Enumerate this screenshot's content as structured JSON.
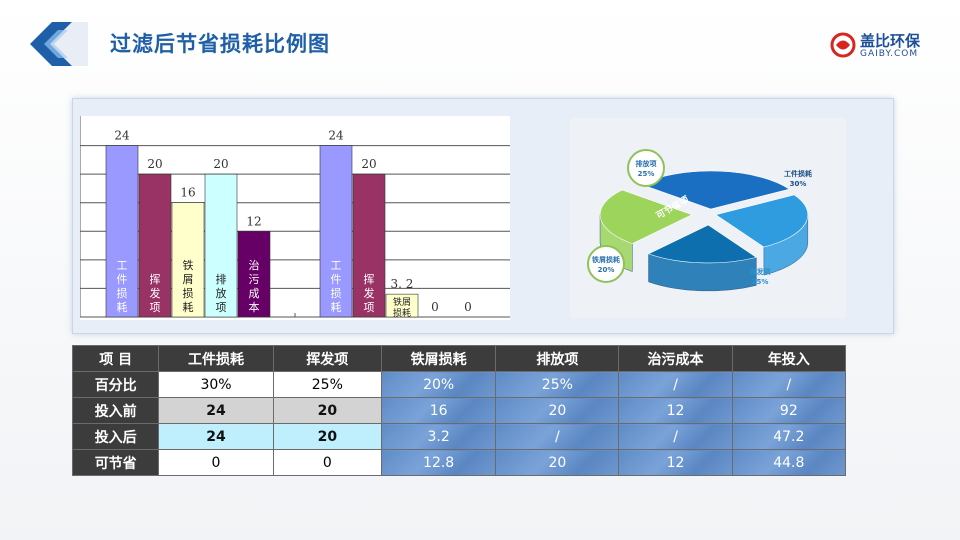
{
  "header": {
    "title": "过滤后节省损耗比例图",
    "brand_name": "盖比环保",
    "brand_sub": "GAIBY.COM"
  },
  "colors": {
    "title": "#1f5fa8",
    "bar_colors": [
      "#9999ff",
      "#993366",
      "#ffffcc",
      "#ccffff",
      "#660066"
    ]
  },
  "chart_data": [
    {
      "type": "bar",
      "title": "",
      "categories": [
        "工件损耗",
        "挥发项",
        "铁屑损耗",
        "排放项",
        "治污成本"
      ],
      "series": [
        {
          "values": [
            24,
            20,
            16,
            20,
            12
          ]
        },
        {
          "values": [
            24,
            20,
            3.2,
            0,
            0
          ]
        }
      ],
      "data_labels": [
        [
          "24",
          "20",
          "16",
          "20",
          "12"
        ],
        [
          "24",
          "20",
          "3. 2",
          "0",
          "0"
        ]
      ],
      "ylim": [
        0,
        28
      ],
      "grid": true
    },
    {
      "type": "pie",
      "style": "3d-exploded",
      "slices": [
        {
          "label": "工件损耗",
          "value": 30,
          "pct": "30%",
          "color": "#1a6fc2"
        },
        {
          "label": "挥发项",
          "value": 25,
          "pct": "25%",
          "color": "#2f9ce0"
        },
        {
          "label": "铁屑损耗",
          "value": 20,
          "pct": "20%",
          "color": "#0e6faf"
        },
        {
          "label": "排放项",
          "value": 25,
          "pct": "25%",
          "color": "#9cd45c"
        }
      ],
      "annotation": "可节省项"
    }
  ],
  "table": {
    "headers": [
      "项  目",
      "工件损耗",
      "挥发项",
      "铁屑损耗",
      "排放项",
      "治污成本",
      "年投入"
    ],
    "rows": [
      {
        "label": "百分比",
        "cells": [
          "30%",
          "25%",
          "20%",
          "25%",
          "/",
          "/"
        ]
      },
      {
        "label": "投入前",
        "cells": [
          "24",
          "20",
          "16",
          "20",
          "12",
          "92"
        ]
      },
      {
        "label": "投入后",
        "cells": [
          "24",
          "20",
          "3.2",
          "/",
          "/",
          "47.2"
        ]
      },
      {
        "label": "可节省",
        "cells": [
          "0",
          "0",
          "12.8",
          "20",
          "12",
          "44.8"
        ]
      }
    ]
  }
}
